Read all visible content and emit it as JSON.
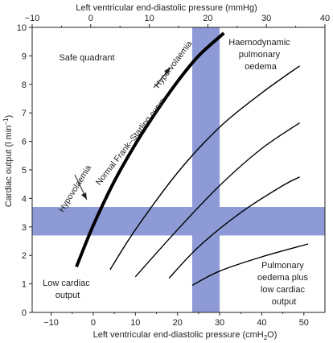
{
  "chart_data": {
    "type": "line",
    "top_axis": {
      "label": "Left ventricular end-diastolic pressure (mmHg)",
      "range": [
        -10,
        40
      ],
      "ticks": [
        -10,
        0,
        10,
        20,
        30,
        40
      ],
      "tick_labels": [
        "−10",
        "0",
        "10",
        "20",
        "30",
        "40"
      ]
    },
    "x_axis": {
      "label_main": "Left ventricular end-diastolic pressure (cmH",
      "label_sub": "2",
      "label_end": "O)",
      "range": [
        -14.5,
        55
      ],
      "ticks": [
        -10,
        0,
        10,
        20,
        30,
        40,
        50
      ],
      "tick_labels": [
        "−10",
        "0",
        "10",
        "20",
        "30",
        "40",
        "50"
      ]
    },
    "y_axis": {
      "label_main": "Cardiac output (l min",
      "label_sup": "−1",
      "label_end": ")",
      "range": [
        0,
        10
      ],
      "ticks": [
        0,
        1,
        2,
        3,
        4,
        5,
        6,
        7,
        8,
        9,
        10
      ],
      "tick_labels": [
        "0",
        "1",
        "2",
        "3",
        "4",
        "5",
        "6",
        "7",
        "8",
        "9",
        "10"
      ]
    },
    "bands": {
      "horizontal": {
        "y_from": 2.7,
        "y_to": 3.7,
        "color": "#8d9ad6"
      },
      "vertical": {
        "x_from": 23.5,
        "x_to": 30,
        "color": "#8d9ad6"
      }
    },
    "series": [
      {
        "name": "Normal Frank–Starling curve",
        "bold": true,
        "x": [
          -4,
          0,
          5,
          10,
          15,
          20,
          25,
          31
        ],
        "y": [
          1.6,
          3.05,
          4.6,
          5.9,
          7.05,
          8.1,
          9.0,
          9.8
        ]
      },
      {
        "bold": false,
        "x": [
          4,
          10,
          20,
          30,
          40,
          49
        ],
        "y": [
          1.5,
          2.9,
          4.9,
          6.5,
          7.7,
          8.65
        ]
      },
      {
        "bold": false,
        "x": [
          10,
          20,
          30,
          40,
          49
        ],
        "y": [
          1.25,
          2.9,
          4.45,
          5.75,
          6.65
        ]
      },
      {
        "bold": false,
        "x": [
          18,
          25,
          35,
          45,
          49
        ],
        "y": [
          1.2,
          2.3,
          3.5,
          4.45,
          4.75
        ]
      },
      {
        "bold": false,
        "x": [
          23.5,
          30,
          40,
          51
        ],
        "y": [
          0.95,
          1.45,
          1.95,
          2.4
        ]
      }
    ],
    "curve_text": {
      "normal": "Normal Frank–Starling curve",
      "hyper": "Hypervolaemia",
      "hypo": "Hypovolaemia"
    },
    "quadrant_labels": {
      "safe": [
        "Safe quadrant"
      ],
      "oedema": [
        "Haemodynamic",
        "pulmonary",
        "oedema"
      ],
      "low": [
        "Low cardiac",
        "output"
      ],
      "oedema_low": [
        "Pulmonary",
        "oedema plus",
        "low cardiac",
        "output"
      ]
    },
    "grid": false,
    "legend": "none"
  },
  "colors": {
    "band": "#8d9ad6",
    "line": "#000000",
    "text": "#222222"
  }
}
